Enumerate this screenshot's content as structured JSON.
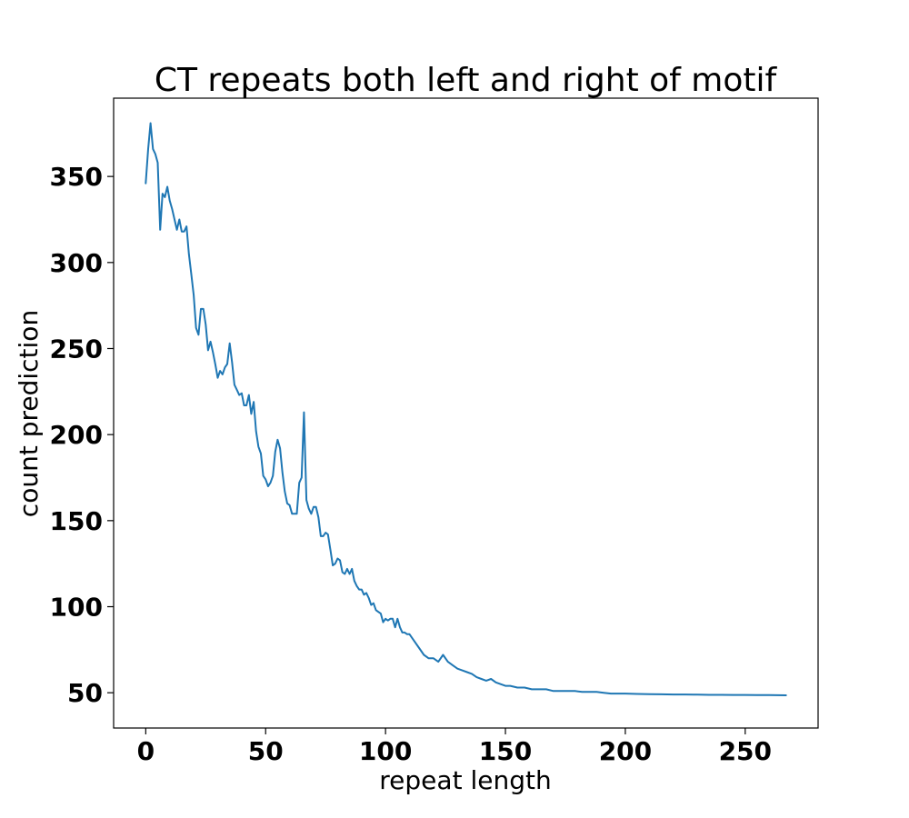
{
  "chart_data": {
    "type": "line",
    "title": "CT repeats both left and right of motif",
    "xlabel": "repeat length",
    "ylabel": "count prediction",
    "xlim": [
      -13.4,
      280.4
    ],
    "ylim": [
      29.5,
      395.5
    ],
    "xticks": [
      0,
      50,
      100,
      150,
      200,
      250
    ],
    "yticks": [
      50,
      100,
      150,
      200,
      250,
      300,
      350
    ],
    "grid": false,
    "legend": "none",
    "series": [
      {
        "color": "#1f77b4",
        "x": [
          0,
          1,
          2,
          3,
          4,
          5,
          6,
          7,
          8,
          9,
          10,
          11,
          12,
          13,
          14,
          15,
          16,
          17,
          18,
          19,
          20,
          21,
          22,
          23,
          24,
          25,
          26,
          27,
          28,
          29,
          30,
          31,
          32,
          33,
          34,
          35,
          36,
          37,
          38,
          39,
          40,
          41,
          42,
          43,
          44,
          45,
          46,
          47,
          48,
          49,
          50,
          51,
          52,
          53,
          54,
          55,
          56,
          57,
          58,
          59,
          60,
          61,
          62,
          63,
          64,
          65,
          66,
          67,
          68,
          69,
          70,
          71,
          72,
          73,
          74,
          75,
          76,
          77,
          78,
          79,
          80,
          81,
          82,
          83,
          84,
          85,
          86,
          87,
          88,
          89,
          90,
          91,
          92,
          93,
          94,
          95,
          96,
          97,
          98,
          99,
          100,
          101,
          102,
          103,
          104,
          105,
          106,
          107,
          108,
          109,
          110,
          112,
          114,
          116,
          118,
          120,
          122,
          124,
          126,
          128,
          130,
          132,
          134,
          136,
          138,
          140,
          142,
          144,
          146,
          148,
          150,
          152,
          155,
          158,
          161,
          164,
          167,
          170,
          173,
          176,
          179,
          182,
          185,
          188,
          191,
          194,
          197,
          200,
          205,
          210,
          215,
          220,
          225,
          230,
          235,
          240,
          245,
          250,
          255,
          260,
          267
        ],
        "y": [
          346,
          366,
          381,
          366,
          363,
          358,
          319,
          340,
          338,
          344,
          336,
          331,
          325,
          319,
          325,
          318,
          318,
          321,
          305,
          293,
          281,
          262,
          258,
          273,
          273,
          264,
          249,
          254,
          248,
          241,
          233,
          237,
          235,
          239,
          241,
          253,
          242,
          229,
          226,
          223,
          224,
          217,
          217,
          223,
          212,
          219,
          202,
          193,
          189,
          176,
          174,
          170,
          172,
          176,
          190,
          197,
          192,
          178,
          167,
          160,
          159,
          154,
          154,
          154,
          172,
          175,
          213,
          162,
          157,
          154,
          158,
          158,
          152,
          141,
          141,
          143,
          142,
          133,
          124,
          125,
          128,
          127,
          120,
          119,
          122,
          119,
          122,
          115,
          112,
          110,
          110,
          107,
          108,
          105,
          101,
          102,
          98,
          97,
          96,
          91,
          93,
          92,
          93,
          93,
          88,
          93,
          88,
          85,
          85,
          84,
          84,
          80,
          76,
          72,
          70,
          70,
          68,
          72,
          68,
          66,
          64,
          63,
          62,
          61,
          59,
          58,
          57,
          58,
          56,
          55,
          54,
          54,
          53,
          53,
          52,
          52,
          52,
          51,
          51,
          51,
          51,
          50.5,
          50.5,
          50.5,
          50,
          49.5,
          49.5,
          49.5,
          49.3,
          49.2,
          49.1,
          49,
          49,
          48.9,
          48.8,
          48.8,
          48.7,
          48.7,
          48.6,
          48.6,
          48.5
        ]
      }
    ]
  }
}
